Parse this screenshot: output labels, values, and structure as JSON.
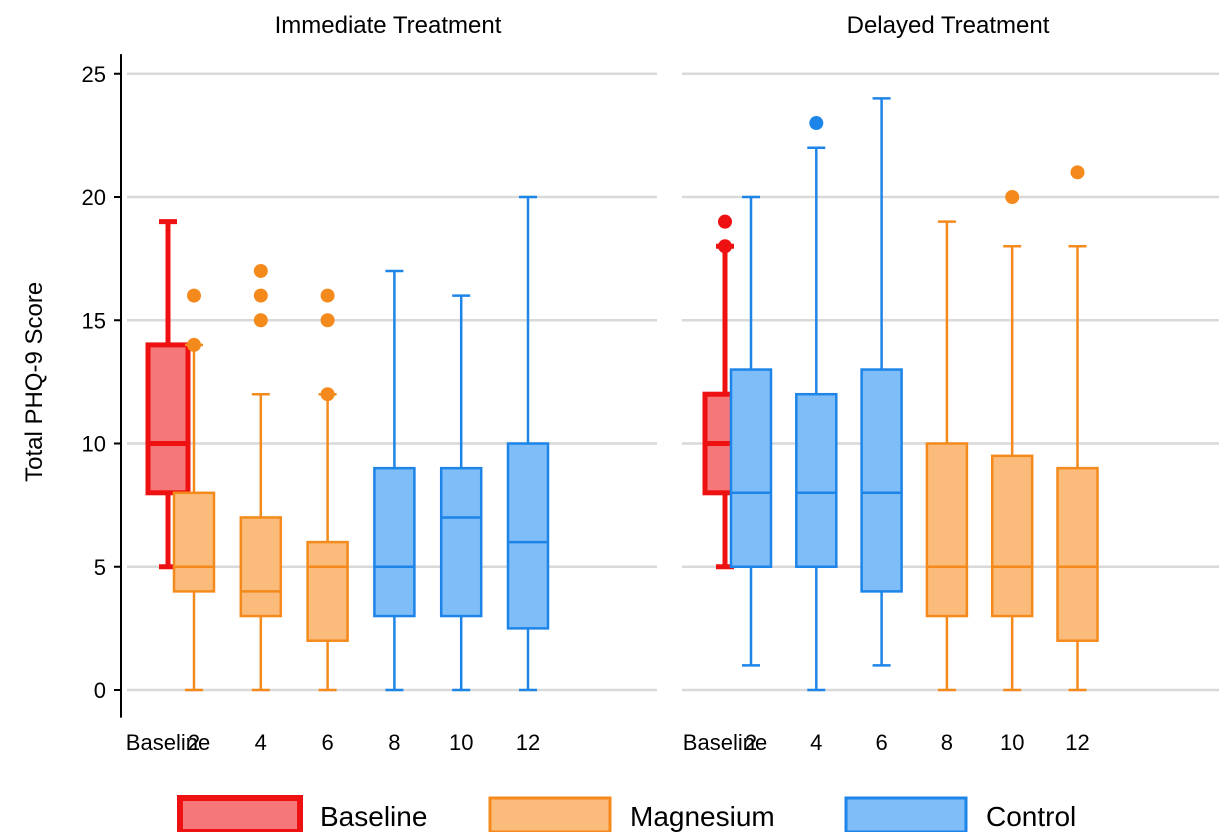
{
  "chart_data": {
    "type": "boxplot",
    "ylabel": "Total PHQ-9 Score",
    "ylim": [
      -1,
      26
    ],
    "yticks": [
      0,
      5,
      10,
      15,
      20,
      25
    ],
    "grid": true,
    "legend": {
      "placement": "bottom",
      "entries": [
        {
          "name": "Baseline",
          "fill": "#f6777a",
          "stroke": "#ee1111"
        },
        {
          "name": "Magnesium",
          "fill": "#fbbb7b",
          "stroke": "#f48a1c"
        },
        {
          "name": "Control",
          "fill": "#7fbdf9",
          "stroke": "#1d84e8"
        }
      ]
    },
    "categories": [
      "Baseline",
      "2",
      "4",
      "6",
      "8",
      "10",
      "12"
    ],
    "panels": [
      {
        "title": "Immediate Treatment",
        "boxes": [
          {
            "category": "Baseline",
            "group": "Baseline",
            "min": 5,
            "q1": 8,
            "median": 10,
            "q3": 14,
            "max": 19,
            "outliers": []
          },
          {
            "category": "2",
            "group": "Magnesium",
            "min": 0,
            "q1": 4,
            "median": 5,
            "q3": 8,
            "max": 14,
            "outliers": [
              14,
              16
            ]
          },
          {
            "category": "4",
            "group": "Magnesium",
            "min": 0,
            "q1": 3,
            "median": 4,
            "q3": 7,
            "max": 12,
            "outliers": [
              15,
              16,
              17
            ]
          },
          {
            "category": "6",
            "group": "Magnesium",
            "min": 0,
            "q1": 2,
            "median": 5,
            "q3": 6,
            "max": 12,
            "outliers": [
              12,
              15,
              16
            ]
          },
          {
            "category": "8",
            "group": "Control",
            "min": 0,
            "q1": 3,
            "median": 5,
            "q3": 9,
            "max": 17,
            "outliers": []
          },
          {
            "category": "10",
            "group": "Control",
            "min": 0,
            "q1": 3,
            "median": 7,
            "q3": 9,
            "max": 16,
            "outliers": []
          },
          {
            "category": "12",
            "group": "Control",
            "min": 0,
            "q1": 2.5,
            "median": 6,
            "q3": 10,
            "max": 20,
            "outliers": []
          }
        ]
      },
      {
        "title": "Delayed Treatment",
        "boxes": [
          {
            "category": "Baseline",
            "group": "Baseline",
            "min": 5,
            "q1": 8,
            "median": 10,
            "q3": 12,
            "max": 18,
            "outliers": [
              18,
              19
            ]
          },
          {
            "category": "2",
            "group": "Control",
            "min": 1,
            "q1": 5,
            "median": 8,
            "q3": 13,
            "max": 20,
            "outliers": []
          },
          {
            "category": "4",
            "group": "Control",
            "min": 0,
            "q1": 5,
            "median": 8,
            "q3": 12,
            "max": 22,
            "outliers": [
              23
            ]
          },
          {
            "category": "6",
            "group": "Control",
            "min": 1,
            "q1": 4,
            "median": 8,
            "q3": 13,
            "max": 24,
            "outliers": []
          },
          {
            "category": "8",
            "group": "Magnesium",
            "min": 0,
            "q1": 3,
            "median": 5,
            "q3": 10,
            "max": 19,
            "outliers": []
          },
          {
            "category": "10",
            "group": "Magnesium",
            "min": 0,
            "q1": 3,
            "median": 5,
            "q3": 9.5,
            "max": 18,
            "outliers": [
              20
            ]
          },
          {
            "category": "12",
            "group": "Magnesium",
            "min": 0,
            "q1": 2,
            "median": 5,
            "q3": 9,
            "max": 18,
            "outliers": [
              21
            ]
          }
        ]
      }
    ]
  }
}
